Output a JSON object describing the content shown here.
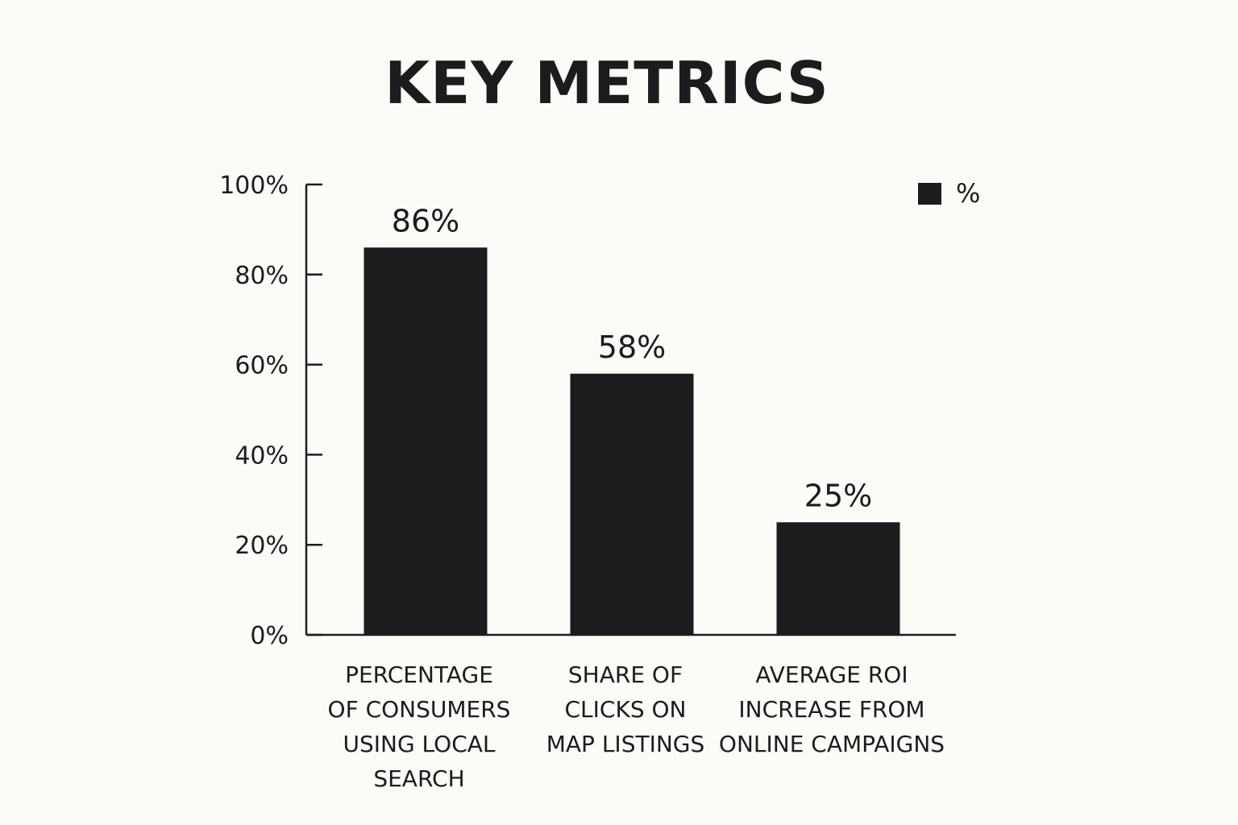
{
  "chart_data": {
    "type": "bar",
    "title": "KEY METRICS",
    "categories": [
      [
        "PERCENTAGE",
        "OF CONSUMERS",
        "USING LOCAL",
        "SEARCH"
      ],
      [
        "SHARE OF",
        "CLICKS ON",
        "MAP LISTINGS"
      ],
      [
        "AVERAGE ROI",
        "INCREASE FROM",
        "ONLINE CAMPAIGNS"
      ]
    ],
    "values": [
      86,
      58,
      25
    ],
    "value_labels": [
      "86%",
      "58%",
      "25%"
    ],
    "ylim": [
      0,
      100
    ],
    "yticks": [
      0,
      20,
      40,
      60,
      80,
      100
    ],
    "ytick_labels": [
      "0%",
      "20%",
      "40%",
      "60%",
      "80%",
      "100%"
    ],
    "legend": {
      "label": "%",
      "position": "top-right"
    },
    "grid": false,
    "colors": {
      "bar": "#1c1c1c",
      "axis": "#1c1c1c",
      "background": "#fcfbf7"
    }
  }
}
